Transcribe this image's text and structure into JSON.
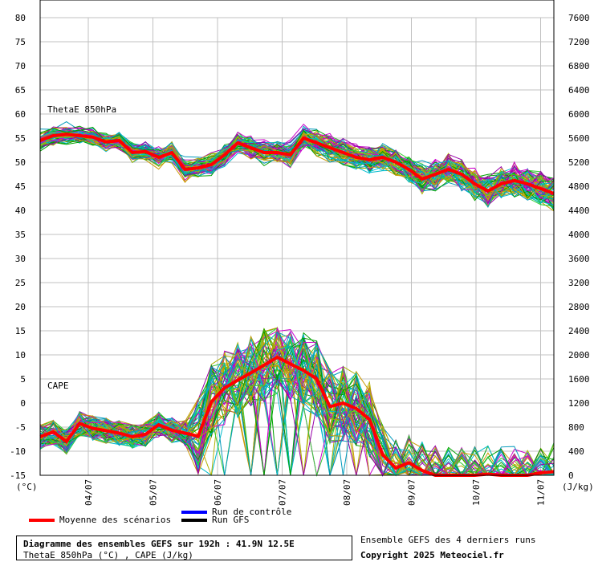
{
  "chart_data": {
    "type": "line",
    "left_axis": {
      "unit": "(°C)",
      "min": -15,
      "max": 80,
      "ticks": [
        80,
        75,
        70,
        65,
        60,
        55,
        50,
        45,
        40,
        35,
        30,
        25,
        20,
        15,
        10,
        5,
        0,
        -5,
        -10,
        -15
      ]
    },
    "right_axis": {
      "unit": "(J/kg)",
      "min": 0,
      "max": 7600,
      "ticks": [
        7600,
        7200,
        6800,
        6400,
        6000,
        5600,
        5200,
        4800,
        4400,
        4000,
        3600,
        3200,
        2800,
        2400,
        2000,
        1600,
        1200,
        800,
        400,
        0
      ]
    },
    "x_labels": [
      "04/07",
      "05/07",
      "06/07",
      "07/07",
      "08/07",
      "09/07",
      "10/07",
      "11/07"
    ],
    "grid": true,
    "series_labels": {
      "thetae": "ThetaE 850hPa",
      "cape": "CAPE"
    },
    "mean_thetae": [
      54.5,
      55.5,
      55.8,
      55.5,
      55.2,
      54.2,
      54.5,
      52.0,
      52.2,
      51.0,
      52.0,
      48.5,
      48.8,
      49.5,
      51.5,
      54.0,
      53.0,
      52.0,
      52.0,
      51.5,
      55.0,
      54.0,
      53.0,
      52.0,
      51.0,
      50.5,
      51.0,
      50.0,
      48.5,
      46.5,
      47.5,
      48.5,
      47.5,
      45.5,
      44.0,
      45.5,
      46.2,
      45.5,
      44.5,
      43.5
    ],
    "mean_cape": [
      640,
      720,
      560,
      860,
      780,
      740,
      700,
      640,
      680,
      840,
      750,
      700,
      650,
      1220,
      1450,
      1580,
      1700,
      1830,
      1960,
      1850,
      1740,
      1600,
      1140,
      1200,
      1110,
      930,
      340,
      120,
      210,
      80,
      0,
      -100,
      -80,
      -50,
      20,
      0,
      -40,
      -120,
      40,
      60
    ],
    "control_runs_note": "",
    "legend": {
      "mean": "Moyenne des scénarios",
      "control": "Run de contrôle",
      "gfs": "Run GFS"
    },
    "colors": {
      "mean": "#ff0000",
      "control": "#0000ff",
      "gfs": "#000000",
      "ensemble": [
        "#00a000",
        "#33cc33",
        "#b0b000",
        "#cc9900",
        "#0099bb",
        "#00bbcc",
        "#9900aa",
        "#cc00cc"
      ],
      "grid": "#c0c0c0"
    }
  },
  "info": {
    "title": "Diagramme des ensembles GEFS sur 192h : 41.9N 12.5E",
    "subtitle": "ThetaE 850hPa (°C) , CAPE (J/kg)",
    "ensemble_text": "Ensemble GEFS des 4 derniers runs",
    "copyright": "Copyright 2025 Meteociel.fr"
  }
}
